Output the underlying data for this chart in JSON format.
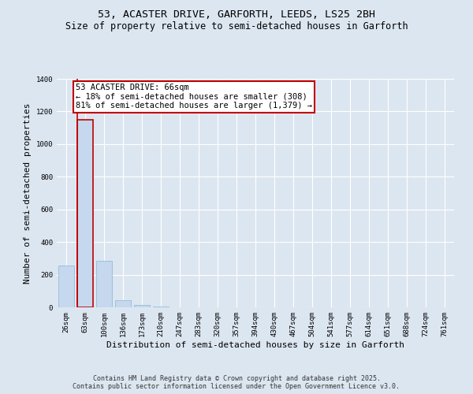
{
  "title": "53, ACASTER DRIVE, GARFORTH, LEEDS, LS25 2BH",
  "subtitle": "Size of property relative to semi-detached houses in Garforth",
  "xlabel": "Distribution of semi-detached houses by size in Garforth",
  "ylabel": "Number of semi-detached properties",
  "categories": [
    "26sqm",
    "63sqm",
    "100sqm",
    "136sqm",
    "173sqm",
    "210sqm",
    "247sqm",
    "283sqm",
    "320sqm",
    "357sqm",
    "394sqm",
    "430sqm",
    "467sqm",
    "504sqm",
    "541sqm",
    "577sqm",
    "614sqm",
    "651sqm",
    "688sqm",
    "724sqm",
    "761sqm"
  ],
  "values": [
    258,
    1150,
    285,
    45,
    15,
    5,
    0,
    0,
    0,
    0,
    0,
    0,
    0,
    0,
    0,
    0,
    0,
    0,
    0,
    0,
    0
  ],
  "highlight_index": 1,
  "bar_color": "#c5d8ed",
  "bar_edge_color": "#8ab4d4",
  "highlight_bar_edge_color": "#c00000",
  "vline_color": "#c00000",
  "annotation_text": "53 ACASTER DRIVE: 66sqm\n← 18% of semi-detached houses are smaller (308)\n81% of semi-detached houses are larger (1,379) →",
  "annotation_box_color": "white",
  "annotation_box_edge_color": "#c00000",
  "ylim": [
    0,
    1400
  ],
  "yticks": [
    0,
    200,
    400,
    600,
    800,
    1000,
    1200,
    1400
  ],
  "background_color": "#dce6f1",
  "plot_bg_color": "#dce6f1",
  "footer_text": "Contains HM Land Registry data © Crown copyright and database right 2025.\nContains public sector information licensed under the Open Government Licence v3.0.",
  "title_fontsize": 9.5,
  "subtitle_fontsize": 8.5,
  "tick_fontsize": 6.5,
  "ylabel_fontsize": 8,
  "xlabel_fontsize": 8,
  "annotation_fontsize": 7.5,
  "footer_fontsize": 6
}
